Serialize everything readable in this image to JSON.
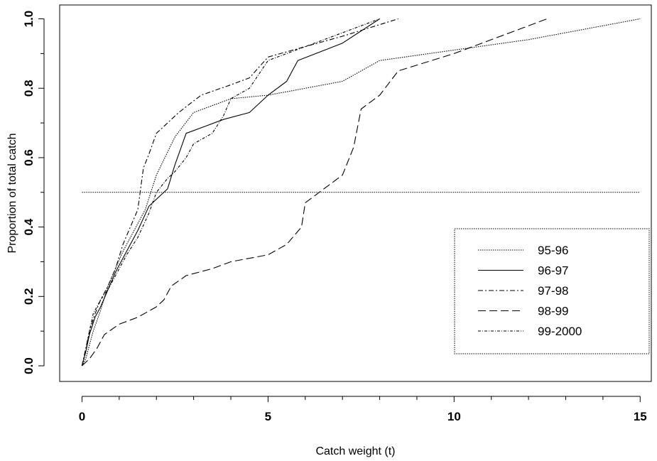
{
  "chart_data": {
    "type": "line",
    "xlabel": "Catch weight (t)",
    "ylabel": "Proportion of total catch",
    "xlim": [
      -0.6,
      15.3
    ],
    "ylim": [
      -0.045,
      1.04
    ],
    "x_ticks": [
      0,
      5,
      10,
      15
    ],
    "x_tick_labels": [
      "0",
      "5",
      "10",
      "15"
    ],
    "y_ticks": [
      0.0,
      0.2,
      0.4,
      0.6,
      0.8,
      1.0
    ],
    "y_tick_labels": [
      "0.0",
      "0.2",
      "0.4",
      "0.6",
      "0.8",
      "1.0"
    ],
    "reference_line": {
      "y": 0.5,
      "x_range": [
        0,
        15
      ]
    },
    "grid": false,
    "legend_position": "bottom-right",
    "series": [
      {
        "name": "95-96",
        "dash": "1.5,1.5",
        "x": [
          0,
          0.1,
          0.2,
          0.3,
          0.5,
          0.7,
          0.9,
          1.1,
          1.4,
          1.7,
          2.0,
          2.5,
          3.0,
          3.5,
          4.0,
          5.0,
          7.0,
          8.0,
          10.0,
          12.0,
          15.0
        ],
        "y": [
          0,
          0.02,
          0.06,
          0.1,
          0.16,
          0.23,
          0.28,
          0.33,
          0.39,
          0.45,
          0.55,
          0.66,
          0.73,
          0.75,
          0.77,
          0.78,
          0.82,
          0.88,
          0.91,
          0.94,
          1.0
        ]
      },
      {
        "name": "96-97",
        "dash": "",
        "x": [
          0,
          0.1,
          0.2,
          0.35,
          0.5,
          0.7,
          0.9,
          1.2,
          1.5,
          1.8,
          2.0,
          2.3,
          2.5,
          2.8,
          3.3,
          3.8,
          4.5,
          5.0,
          5.5,
          5.8,
          7.0,
          8.0
        ],
        "y": [
          0,
          0.04,
          0.09,
          0.14,
          0.17,
          0.22,
          0.27,
          0.33,
          0.39,
          0.46,
          0.48,
          0.51,
          0.58,
          0.67,
          0.69,
          0.71,
          0.73,
          0.78,
          0.82,
          0.88,
          0.93,
          1.0
        ]
      },
      {
        "name": "97-98",
        "dash": "7,3,2,3",
        "x": [
          0,
          0.1,
          0.2,
          0.35,
          0.5,
          0.7,
          0.9,
          1.1,
          1.3,
          1.5,
          1.65,
          1.8,
          2.0,
          2.3,
          2.6,
          3.2,
          4.0,
          4.5,
          5.0,
          6.0,
          7.0,
          8.5
        ],
        "y": [
          0,
          0.05,
          0.1,
          0.15,
          0.19,
          0.23,
          0.28,
          0.35,
          0.4,
          0.45,
          0.57,
          0.61,
          0.67,
          0.7,
          0.73,
          0.78,
          0.81,
          0.83,
          0.89,
          0.92,
          0.95,
          1.0
        ]
      },
      {
        "name": "98-99",
        "dash": "11,5",
        "x": [
          0,
          0.2,
          0.4,
          0.6,
          1.0,
          1.5,
          2.0,
          2.2,
          2.4,
          2.8,
          3.5,
          4.0,
          5.0,
          5.5,
          5.9,
          6.0,
          7.0,
          7.3,
          7.5,
          8.0,
          8.5,
          10.0,
          12.5
        ],
        "y": [
          0,
          0.02,
          0.05,
          0.09,
          0.12,
          0.14,
          0.17,
          0.19,
          0.23,
          0.26,
          0.28,
          0.3,
          0.32,
          0.35,
          0.4,
          0.47,
          0.55,
          0.63,
          0.74,
          0.78,
          0.85,
          0.9,
          1.0
        ]
      },
      {
        "name": "99-2000",
        "dash": "4,2,1,2",
        "x": [
          0,
          0.1,
          0.2,
          0.3,
          0.5,
          0.7,
          0.9,
          1.2,
          1.5,
          1.8,
          2.0,
          2.3,
          2.5,
          2.8,
          3.0,
          3.5,
          3.8,
          4.0,
          4.5,
          5.0,
          6.0,
          7.0,
          8.0
        ],
        "y": [
          0,
          0.04,
          0.1,
          0.15,
          0.19,
          0.22,
          0.26,
          0.32,
          0.37,
          0.44,
          0.5,
          0.54,
          0.56,
          0.6,
          0.64,
          0.67,
          0.72,
          0.77,
          0.8,
          0.88,
          0.92,
          0.96,
          1.0
        ]
      }
    ]
  }
}
